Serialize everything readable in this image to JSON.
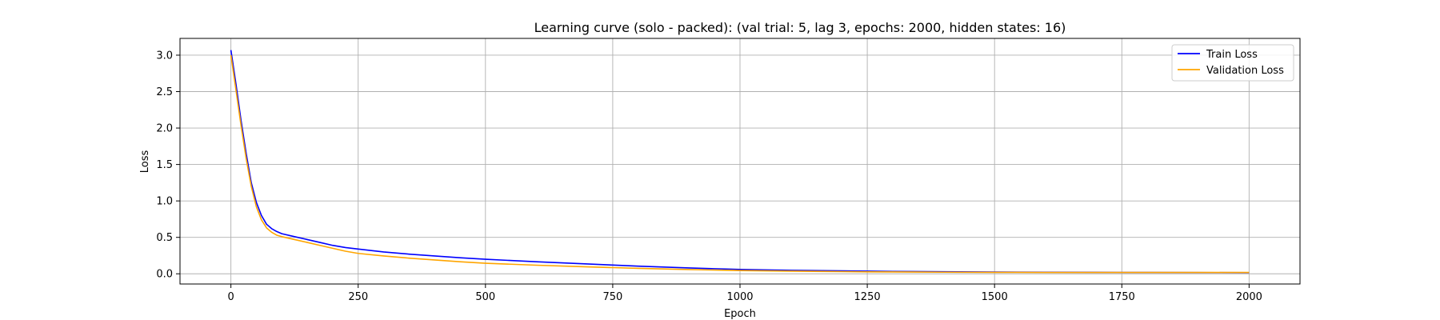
{
  "chart_data": {
    "type": "line",
    "title": "Learning curve (solo - packed): (val trial: 5, lag 3, epochs: 2000, hidden states: 16)",
    "xlabel": "Epoch",
    "ylabel": "Loss",
    "xlim": [
      -100,
      2100
    ],
    "ylim": [
      -0.14,
      3.23
    ],
    "xticks": [
      0,
      250,
      500,
      750,
      1000,
      1250,
      1500,
      1750,
      2000
    ],
    "yticks": [
      0.0,
      0.5,
      1.0,
      1.5,
      2.0,
      2.5,
      3.0
    ],
    "xtick_labels": [
      "0",
      "250",
      "500",
      "750",
      "1000",
      "1250",
      "1500",
      "1750",
      "2000"
    ],
    "ytick_labels": [
      "0.0",
      "0.5",
      "1.0",
      "1.5",
      "2.0",
      "2.5",
      "3.0"
    ],
    "grid": true,
    "legend_position": "top-right",
    "x": [
      0,
      10,
      20,
      30,
      40,
      50,
      60,
      70,
      80,
      90,
      100,
      125,
      150,
      175,
      200,
      225,
      250,
      300,
      350,
      400,
      450,
      500,
      600,
      700,
      750,
      800,
      900,
      1000,
      1100,
      1200,
      1250,
      1300,
      1400,
      1500,
      1600,
      1700,
      1750,
      1800,
      1900,
      2000
    ],
    "series": [
      {
        "name": "Train Loss",
        "color": "#0000ff",
        "values": [
          3.07,
          2.6,
          2.1,
          1.65,
          1.25,
          0.98,
          0.8,
          0.68,
          0.62,
          0.58,
          0.55,
          0.51,
          0.47,
          0.43,
          0.39,
          0.36,
          0.34,
          0.3,
          0.27,
          0.245,
          0.22,
          0.2,
          0.165,
          0.135,
          0.12,
          0.105,
          0.08,
          0.06,
          0.048,
          0.04,
          0.036,
          0.033,
          0.028,
          0.024,
          0.022,
          0.02,
          0.019,
          0.018,
          0.017,
          0.016
        ]
      },
      {
        "name": "Validation Loss",
        "color": "#ffa500",
        "values": [
          3.0,
          2.52,
          2.03,
          1.58,
          1.2,
          0.92,
          0.74,
          0.63,
          0.57,
          0.53,
          0.51,
          0.47,
          0.43,
          0.39,
          0.35,
          0.31,
          0.28,
          0.245,
          0.215,
          0.19,
          0.165,
          0.145,
          0.118,
          0.095,
          0.085,
          0.075,
          0.058,
          0.045,
          0.036,
          0.03,
          0.027,
          0.025,
          0.022,
          0.02,
          0.019,
          0.018,
          0.018,
          0.018,
          0.018,
          0.018
        ]
      }
    ]
  }
}
